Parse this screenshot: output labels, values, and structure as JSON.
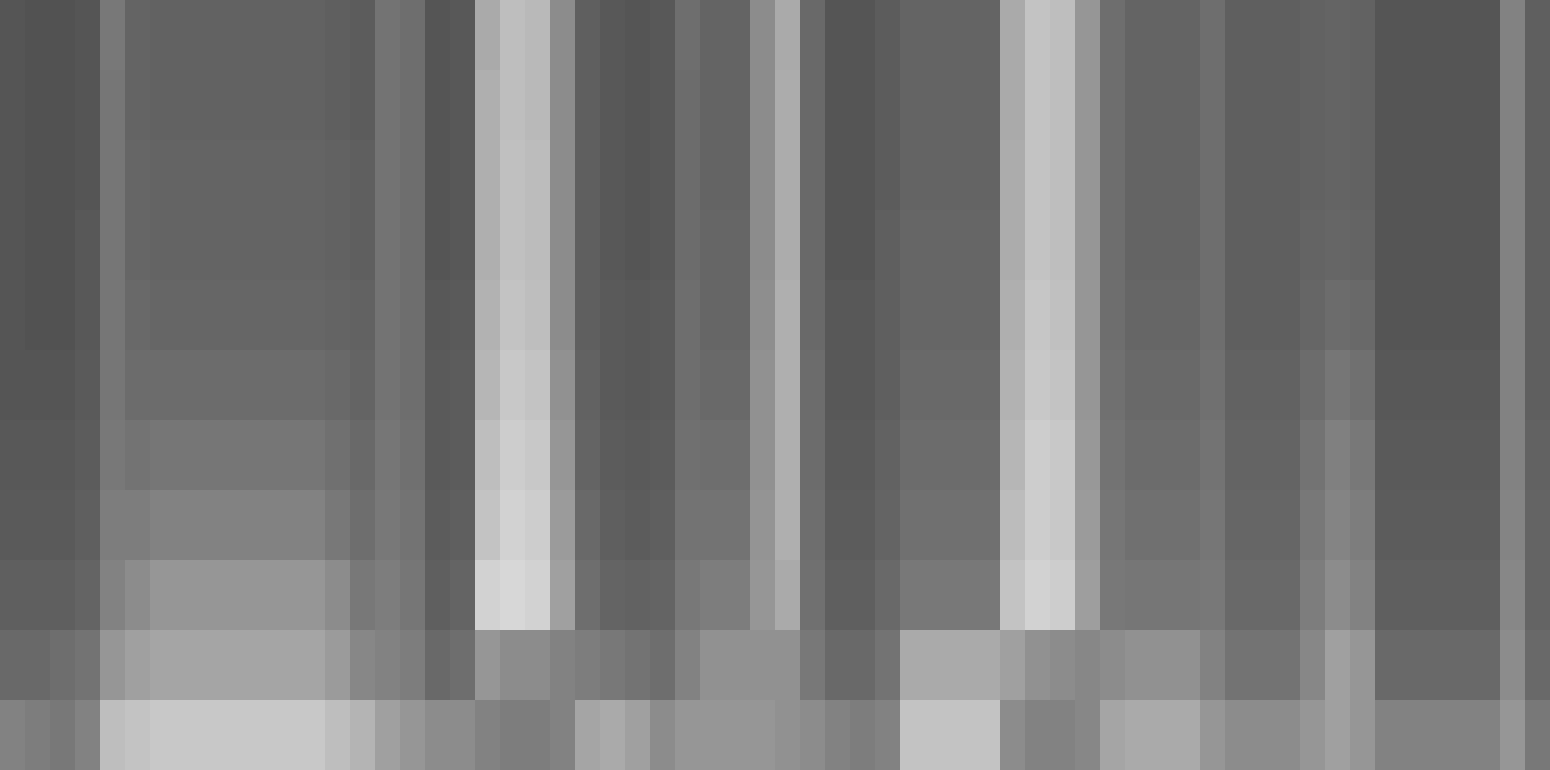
{
  "chart_data": {
    "type": "heatmap",
    "tick_labels": false,
    "cells": [
      [
        85,
        85,
        85,
        85,
        85,
        85,
        88,
        90,
        95,
        105,
        130
      ],
      [
        82,
        82,
        82,
        82,
        82,
        85,
        88,
        90,
        95,
        105,
        125
      ],
      [
        82,
        82,
        82,
        82,
        82,
        85,
        88,
        90,
        95,
        110,
        120
      ],
      [
        85,
        85,
        85,
        88,
        88,
        90,
        92,
        95,
        100,
        115,
        130
      ],
      [
        120,
        118,
        118,
        118,
        118,
        118,
        120,
        125,
        130,
        150,
        190
      ],
      [
        100,
        100,
        102,
        102,
        105,
        108,
        115,
        125,
        140,
        160,
        195
      ],
      [
        98,
        98,
        100,
        100,
        102,
        108,
        118,
        130,
        150,
        165,
        200
      ],
      [
        98,
        98,
        100,
        100,
        102,
        108,
        118,
        130,
        150,
        165,
        200
      ],
      [
        98,
        98,
        100,
        100,
        102,
        108,
        118,
        130,
        150,
        165,
        200
      ],
      [
        98,
        98,
        100,
        100,
        102,
        108,
        118,
        130,
        150,
        165,
        200
      ],
      [
        98,
        98,
        100,
        100,
        102,
        108,
        118,
        130,
        150,
        165,
        200
      ],
      [
        98,
        98,
        100,
        100,
        102,
        108,
        118,
        130,
        150,
        165,
        200
      ],
      [
        98,
        98,
        100,
        100,
        102,
        108,
        118,
        130,
        150,
        165,
        200
      ],
      [
        95,
        95,
        98,
        98,
        100,
        105,
        112,
        120,
        140,
        155,
        190
      ],
      [
        92,
        92,
        95,
        95,
        98,
        100,
        105,
        110,
        120,
        135,
        180
      ],
      [
        115,
        115,
        115,
        115,
        115,
        115,
        118,
        120,
        125,
        130,
        160
      ],
      [
        110,
        110,
        110,
        110,
        110,
        110,
        112,
        115,
        118,
        125,
        150
      ],
      [
        85,
        85,
        85,
        85,
        88,
        90,
        90,
        92,
        95,
        105,
        140
      ],
      [
        88,
        88,
        88,
        88,
        90,
        92,
        92,
        95,
        100,
        110,
        140
      ],
      [
        170,
        175,
        175,
        175,
        178,
        182,
        190,
        195,
        210,
        150,
        130
      ],
      [
        190,
        190,
        192,
        192,
        195,
        200,
        205,
        210,
        215,
        140,
        125
      ],
      [
        185,
        185,
        188,
        188,
        190,
        195,
        200,
        205,
        210,
        140,
        125
      ],
      [
        140,
        140,
        140,
        140,
        140,
        145,
        150,
        155,
        160,
        130,
        130
      ],
      [
        95,
        95,
        95,
        95,
        95,
        98,
        100,
        105,
        110,
        125,
        165
      ],
      [
        88,
        88,
        88,
        88,
        90,
        90,
        92,
        95,
        100,
        120,
        170
      ],
      [
        85,
        85,
        85,
        85,
        88,
        88,
        90,
        92,
        98,
        115,
        160
      ],
      [
        88,
        88,
        88,
        88,
        90,
        90,
        92,
        95,
        100,
        110,
        140
      ],
      [
        110,
        108,
        108,
        108,
        110,
        110,
        112,
        115,
        120,
        130,
        150
      ],
      [
        100,
        100,
        100,
        102,
        102,
        105,
        110,
        115,
        125,
        145,
        150
      ],
      [
        100,
        100,
        100,
        102,
        102,
        105,
        110,
        115,
        125,
        145,
        150
      ],
      [
        140,
        140,
        140,
        140,
        142,
        145,
        145,
        148,
        150,
        145,
        150
      ],
      [
        170,
        172,
        172,
        172,
        175,
        175,
        175,
        175,
        170,
        145,
        145
      ],
      [
        105,
        105,
        105,
        105,
        105,
        108,
        108,
        110,
        112,
        120,
        140
      ],
      [
        85,
        85,
        85,
        85,
        88,
        88,
        90,
        92,
        95,
        105,
        130
      ],
      [
        85,
        85,
        85,
        85,
        88,
        88,
        90,
        92,
        95,
        105,
        125
      ],
      [
        92,
        92,
        92,
        95,
        95,
        95,
        98,
        100,
        105,
        115,
        130
      ],
      [
        100,
        100,
        100,
        102,
        102,
        105,
        108,
        112,
        120,
        170,
        195
      ],
      [
        100,
        100,
        100,
        102,
        102,
        105,
        108,
        112,
        120,
        170,
        195
      ],
      [
        100,
        100,
        100,
        102,
        102,
        105,
        108,
        112,
        120,
        170,
        195
      ],
      [
        100,
        100,
        100,
        102,
        102,
        105,
        108,
        112,
        120,
        170,
        195
      ],
      [
        170,
        170,
        172,
        172,
        175,
        178,
        182,
        188,
        195,
        160,
        140
      ],
      [
        195,
        195,
        195,
        195,
        198,
        200,
        205,
        205,
        210,
        145,
        130
      ],
      [
        190,
        190,
        190,
        190,
        192,
        195,
        200,
        200,
        205,
        140,
        130
      ],
      [
        150,
        150,
        150,
        150,
        150,
        150,
        152,
        155,
        158,
        135,
        135
      ],
      [
        110,
        110,
        110,
        110,
        110,
        112,
        115,
        118,
        120,
        140,
        165
      ],
      [
        100,
        100,
        100,
        100,
        102,
        105,
        108,
        112,
        118,
        145,
        170
      ],
      [
        100,
        100,
        100,
        100,
        102,
        105,
        108,
        112,
        118,
        145,
        170
      ],
      [
        100,
        100,
        100,
        100,
        102,
        105,
        108,
        112,
        118,
        145,
        170
      ],
      [
        110,
        110,
        110,
        110,
        110,
        112,
        115,
        118,
        120,
        130,
        150
      ],
      [
        95,
        95,
        95,
        95,
        95,
        98,
        100,
        102,
        105,
        115,
        140
      ],
      [
        95,
        95,
        95,
        95,
        95,
        98,
        100,
        102,
        105,
        115,
        140
      ],
      [
        95,
        95,
        95,
        95,
        95,
        98,
        100,
        102,
        105,
        115,
        140
      ],
      [
        98,
        98,
        98,
        100,
        102,
        108,
        115,
        120,
        125,
        135,
        150
      ],
      [
        100,
        100,
        100,
        102,
        108,
        118,
        128,
        132,
        140,
        160,
        160
      ],
      [
        98,
        98,
        98,
        100,
        105,
        112,
        120,
        125,
        130,
        150,
        150
      ],
      [
        85,
        85,
        85,
        85,
        85,
        88,
        90,
        92,
        95,
        105,
        130
      ],
      [
        85,
        85,
        85,
        85,
        85,
        88,
        90,
        92,
        95,
        105,
        130
      ],
      [
        85,
        85,
        85,
        85,
        85,
        88,
        90,
        92,
        95,
        105,
        130
      ],
      [
        85,
        85,
        85,
        85,
        85,
        88,
        90,
        92,
        95,
        105,
        130
      ],
      [
        85,
        85,
        85,
        85,
        85,
        88,
        90,
        92,
        95,
        105,
        130
      ],
      [
        130,
        130,
        130,
        130,
        130,
        130,
        130,
        132,
        135,
        140,
        150
      ],
      [
        95,
        95,
        95,
        95,
        95,
        95,
        98,
        100,
        100,
        105,
        120
      ]
    ]
  }
}
